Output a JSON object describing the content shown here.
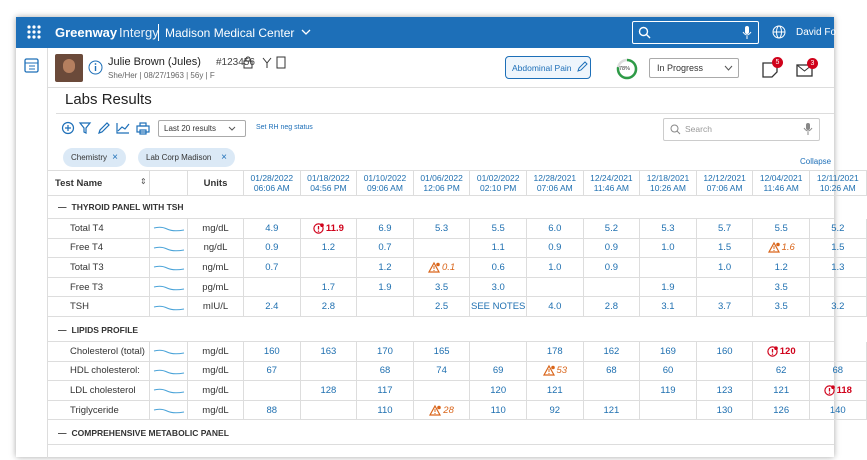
{
  "header": {
    "brand": "Greenway",
    "product": "Intergy",
    "location": "Madison Medical Center",
    "user": "David Fo"
  },
  "patient": {
    "name": "Julie Brown (Jules)",
    "id": "#123456",
    "details": "She/Her | 08/27/1963 | 56y | F",
    "complaint": "Abdominal Pain",
    "progress": "78%",
    "status": "In Progress",
    "notes_badge": "5",
    "mail_badge": "3"
  },
  "page": {
    "title": "Labs Results",
    "range": "Last 20 results",
    "rh_link": "Set RH neg status",
    "search_placeholder": "Search",
    "filters": [
      "Chemistry",
      "Lab Corp Madison"
    ],
    "collapse": "Collapse"
  },
  "table": {
    "test_header": "Test Name",
    "unit_header": "Units",
    "columns": [
      {
        "date": "01/28/2022",
        "time": "06:06 AM"
      },
      {
        "date": "01/18/2022",
        "time": "04:56 PM"
      },
      {
        "date": "01/10/2022",
        "time": "09:06 AM"
      },
      {
        "date": "01/06/2022",
        "time": "12:06 PM"
      },
      {
        "date": "01/02/2022",
        "time": "02:10 PM"
      },
      {
        "date": "12/28/2021",
        "time": "07:06 AM"
      },
      {
        "date": "12/24/2021",
        "time": "11:46 AM"
      },
      {
        "date": "12/18/2021",
        "time": "10:26 AM"
      },
      {
        "date": "12/12/2021",
        "time": "07:06 AM"
      },
      {
        "date": "12/04/2021",
        "time": "11:46 AM"
      },
      {
        "date": "12/11/2021",
        "time": "10:26 AM"
      }
    ],
    "sections": [
      {
        "title": "THYROID PANEL WITH TSH",
        "rows": [
          {
            "name": "Total T4",
            "unit": "mg/dL",
            "values": [
              "4.9",
              {
                "text": "11.9",
                "flag": "critical"
              },
              "6.9",
              "5.3",
              "5.5",
              "6.0",
              "5.2",
              "5.3",
              "5.7",
              "5.5",
              "5.2"
            ]
          },
          {
            "name": "Free T4",
            "unit": "ng/dL",
            "values": [
              "0.9",
              "1.2",
              "0.7",
              null,
              "1.1",
              "0.9",
              "0.9",
              "1.0",
              "1.5",
              {
                "text": "1.6",
                "flag": "warning"
              },
              "1.5"
            ]
          },
          {
            "name": "Total T3",
            "unit": "ng/mL",
            "values": [
              "0.7",
              null,
              "1.2",
              {
                "text": "0.1",
                "flag": "warning"
              },
              "0.6",
              "1.0",
              "0.9",
              null,
              "1.0",
              "1.2",
              "1.3"
            ]
          },
          {
            "name": "Free T3",
            "unit": "pg/mL",
            "values": [
              null,
              "1.7",
              "1.9",
              "3.5",
              "3.0",
              null,
              null,
              "1.9",
              null,
              "3.5",
              null
            ]
          },
          {
            "name": "TSH",
            "unit": "mIU/L",
            "values": [
              "2.4",
              "2.8",
              null,
              "2.5",
              "SEE NOTES",
              "4.0",
              "2.8",
              "3.1",
              "3.7",
              "3.5",
              "3.2"
            ]
          }
        ]
      },
      {
        "title": "LIPIDS PROFILE",
        "rows": [
          {
            "name": "Cholesterol (total)",
            "unit": "mg/dL",
            "values": [
              "160",
              "163",
              "170",
              "165",
              null,
              "178",
              "162",
              "169",
              "160",
              {
                "text": "120",
                "flag": "critical"
              },
              null
            ]
          },
          {
            "name": "HDL cholesterol:",
            "unit": "mg/dL",
            "values": [
              "67",
              null,
              "68",
              "74",
              "69",
              {
                "text": "53",
                "flag": "warning"
              },
              "68",
              "60",
              null,
              "62",
              "68"
            ]
          },
          {
            "name": "LDL cholesterol",
            "unit": "mg/dL",
            "values": [
              null,
              "128",
              "117",
              null,
              "120",
              "121",
              null,
              "119",
              "123",
              "121",
              {
                "text": "118",
                "flag": "critical"
              }
            ]
          },
          {
            "name": "Triglyceride",
            "unit": "mg/dL",
            "values": [
              "88",
              null,
              "110",
              {
                "text": "28",
                "flag": "warning"
              },
              "110",
              "92",
              "121",
              null,
              "130",
              "126",
              "140"
            ]
          }
        ]
      },
      {
        "title": "COMPREHENSIVE METABOLIC PANEL",
        "rows": []
      }
    ]
  }
}
